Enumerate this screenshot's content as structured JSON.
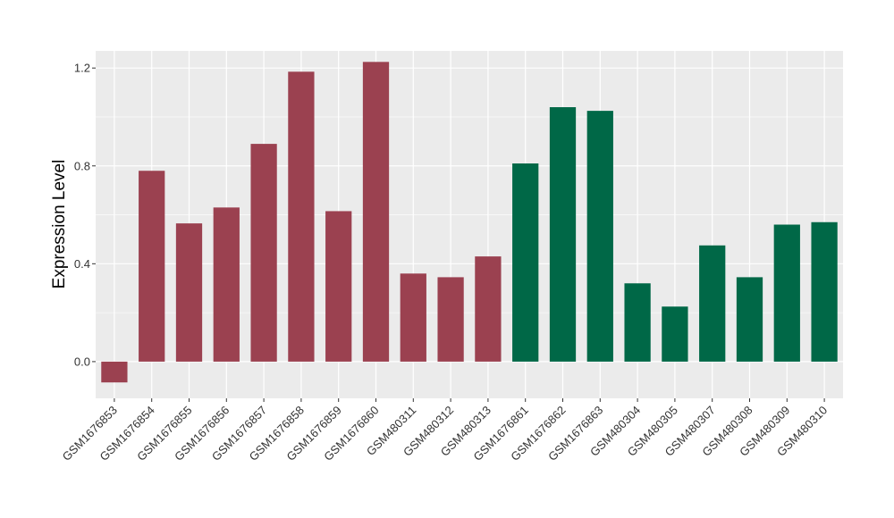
{
  "chart_data": {
    "type": "bar",
    "title": "",
    "xlabel": "",
    "ylabel": "Expression Level",
    "ylim": [
      -0.15,
      1.27
    ],
    "yticks": [
      0.0,
      0.4,
      0.8,
      1.2
    ],
    "ytick_labels": [
      "0.0",
      "0.4",
      "0.8",
      "1.2"
    ],
    "grid": true,
    "legend": "none",
    "colors": {
      "group_1": "#9b4150",
      "group_2": "#006847",
      "panel_bg": "#ebebeb",
      "grid": "#ffffff"
    },
    "categories": [
      "GSM1676853",
      "GSM1676854",
      "GSM1676855",
      "GSM1676856",
      "GSM1676857",
      "GSM1676858",
      "GSM1676859",
      "GSM1676860",
      "GSM480311",
      "GSM480312",
      "GSM480313",
      "GSM1676861",
      "GSM1676862",
      "GSM1676863",
      "GSM480304",
      "GSM480305",
      "GSM480307",
      "GSM480308",
      "GSM480309",
      "GSM480310"
    ],
    "values": [
      -0.085,
      0.78,
      0.565,
      0.63,
      0.89,
      1.185,
      0.615,
      1.225,
      0.36,
      0.345,
      0.43,
      0.81,
      1.04,
      1.025,
      0.32,
      0.225,
      0.475,
      0.345,
      0.56,
      0.57
    ],
    "groups": [
      "group_1",
      "group_1",
      "group_1",
      "group_1",
      "group_1",
      "group_1",
      "group_1",
      "group_1",
      "group_1",
      "group_1",
      "group_1",
      "group_2",
      "group_2",
      "group_2",
      "group_2",
      "group_2",
      "group_2",
      "group_2",
      "group_2",
      "group_2"
    ]
  }
}
